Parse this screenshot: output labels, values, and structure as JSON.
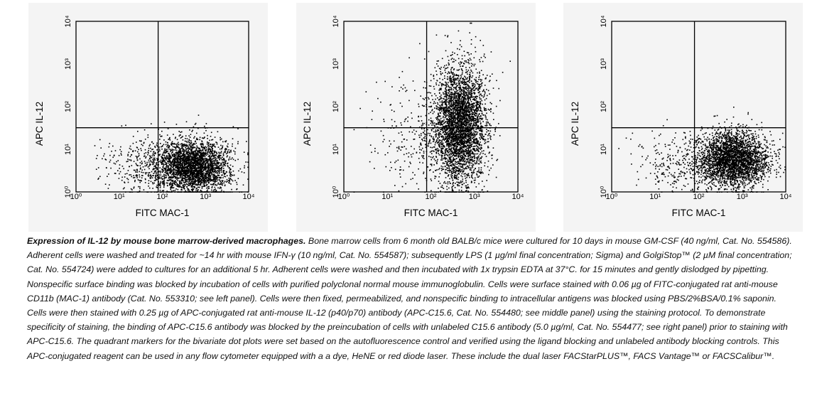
{
  "chart_data": [
    {
      "type": "scatter",
      "panel": "left",
      "xlabel": "FITC MAC-1",
      "ylabel": "APC IL-12",
      "xscale": "log",
      "yscale": "log",
      "xlim": [
        1,
        10000
      ],
      "ylim": [
        1,
        10000
      ],
      "x_ticks": [
        "10⁰",
        "10¹",
        "10²",
        "10³",
        "10⁴"
      ],
      "y_ticks": [
        "10⁰",
        "10¹",
        "10²",
        "10³",
        "10⁴"
      ],
      "quadrant_x": 80,
      "quadrant_y": 32,
      "populations": [
        {
          "center_x": 500,
          "center_y": 4,
          "spread_log_x": 0.42,
          "spread_log_y": 0.32,
          "count": 3000
        },
        {
          "center_x": 40,
          "center_y": 4,
          "spread_log_x": 0.5,
          "spread_log_y": 0.35,
          "count": 350
        }
      ]
    },
    {
      "type": "scatter",
      "panel": "middle",
      "xlabel": "FITC MAC-1",
      "ylabel": "APC IL-12",
      "xscale": "log",
      "yscale": "log",
      "xlim": [
        1,
        10000
      ],
      "ylim": [
        1,
        10000
      ],
      "x_ticks": [
        "10⁰",
        "10¹",
        "10²",
        "10³",
        "10⁴"
      ],
      "y_ticks": [
        "10⁰",
        "10¹",
        "10²",
        "10³",
        "10⁴"
      ],
      "quadrant_x": 80,
      "quadrant_y": 32,
      "populations": [
        {
          "center_x": 450,
          "center_y": 40,
          "spread_log_x": 0.3,
          "spread_log_y": 0.7,
          "count": 3600
        },
        {
          "center_x": 60,
          "center_y": 20,
          "spread_log_x": 0.55,
          "spread_log_y": 0.6,
          "count": 350
        }
      ]
    },
    {
      "type": "scatter",
      "panel": "right",
      "xlabel": "FITC MAC-1",
      "ylabel": "APC IL-12",
      "xscale": "log",
      "yscale": "log",
      "xlim": [
        1,
        10000
      ],
      "ylim": [
        1,
        10000
      ],
      "x_ticks": [
        "10⁰",
        "10¹",
        "10²",
        "10³",
        "10⁴"
      ],
      "y_ticks": [
        "10⁰",
        "10¹",
        "10²",
        "10³",
        "10⁴"
      ],
      "quadrant_x": 80,
      "quadrant_y": 32,
      "populations": [
        {
          "center_x": 600,
          "center_y": 6,
          "spread_log_x": 0.4,
          "spread_log_y": 0.32,
          "count": 3000
        },
        {
          "center_x": 40,
          "center_y": 5,
          "spread_log_x": 0.5,
          "spread_log_y": 0.35,
          "count": 300
        }
      ]
    }
  ],
  "caption": {
    "lead": "Expression of IL-12 by mouse bone marrow-derived macrophages.",
    "body": " Bone marrow cells from 6 month old BALB/c mice were cultured for 10 days in mouse GM-CSF (40 ng/ml, Cat. No. 554586). Adherent cells were washed and treated for ~14 hr with mouse IFN-γ (10 ng/ml, Cat. No. 554587); subsequently LPS (1 µg/ml final concentration; Sigma) and GolgiStop™ (2 µM final concentration; Cat. No. 554724) were added to cultures for an additional 5 hr. Adherent cells were washed and then incubated with 1x trypsin EDTA at 37°C. for 15 minutes and gently dislodged by pipetting. Nonspecific surface binding was blocked by incubation of cells with purified polyclonal normal mouse immunoglobulin. Cells were surface stained with 0.06 µg of FITC-conjugated rat anti-mouse CD11b (MAC-1) antibody (Cat. No. 553310; see left panel). Cells were then fixed, permeabilized, and nonspecific binding to intracellular antigens was blocked using PBS/2%BSA/0.1% saponin. Cells were then stained with 0.25 µg of APC-conjugated rat anti-mouse IL-12 (p40/p70) antibody (APC-C15.6, Cat. No. 554480; see middle panel) using the staining protocol. To demonstrate specificity of staining, the binding of APC-C15.6 antibody was blocked by the preincubation of cells with unlabeled C15.6 antibody (5.0 µg/ml, Cat. No. 554477; see right panel) prior to staining with APC-C15.6. The quadrant markers for the bivariate dot plots were set based on the autofluorescence control and verified using the ligand blocking and unlabeled antibody blocking controls. This APC-conjugated reagent can be used in any flow cytometer equipped with a a dye, HeNE or red diode laser. These include the dual laser FACStarPLUS™, FACS Vantage™ or FACSCalibur™."
  }
}
